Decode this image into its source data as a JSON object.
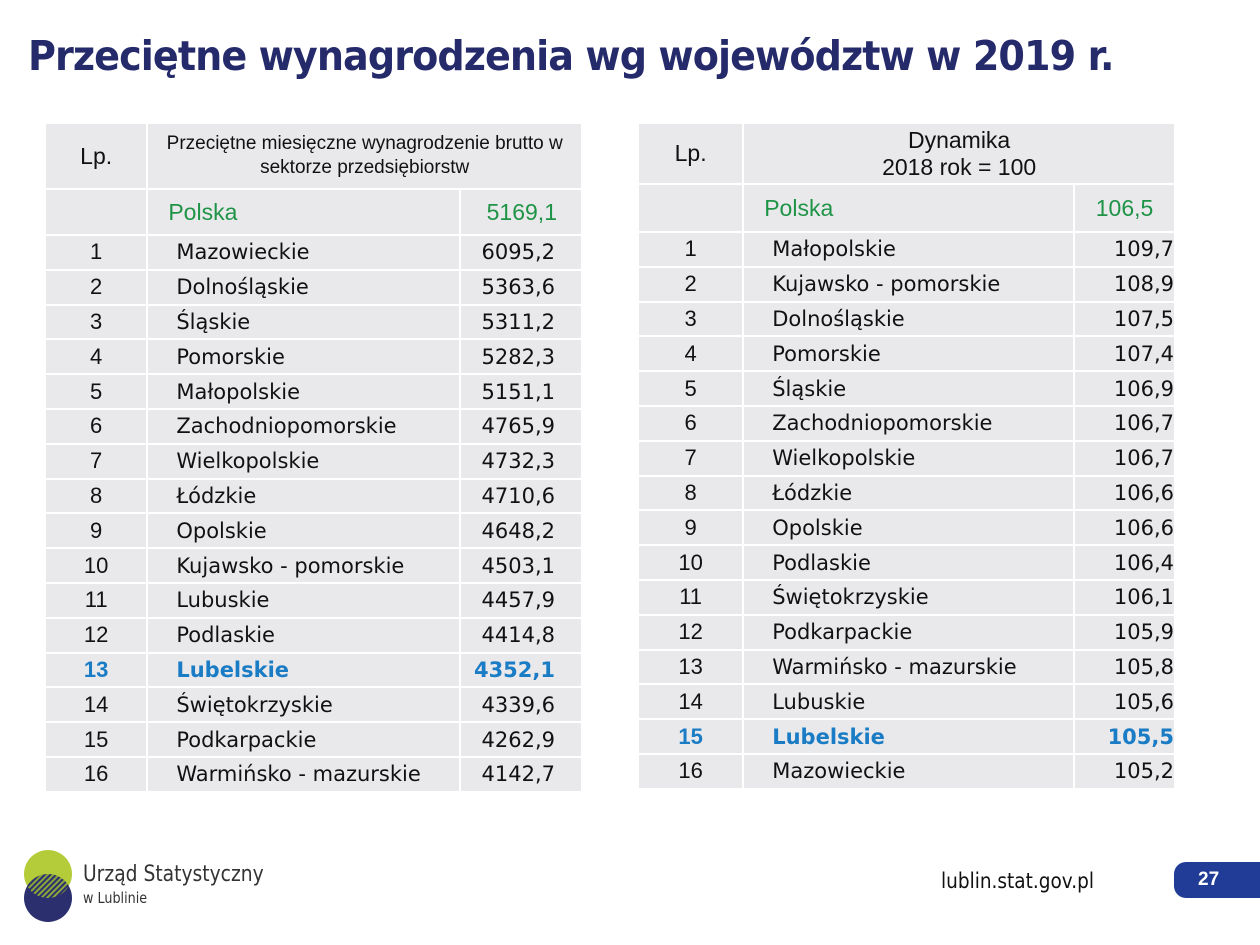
{
  "title": "Przeciętne wynagrodzenia wg województw w 2019 r.",
  "left_table": {
    "lp_header": "Lp.",
    "header": "Przeciętne miesięczne wynagrodzenie brutto w sektorze przedsiębiorstw",
    "total_label": "Polska",
    "total_value": "5169,1",
    "highlight_index": 12,
    "rows": [
      [
        "1",
        "Mazowieckie",
        "6095,2"
      ],
      [
        "2",
        "Dolnośląskie",
        "5363,6"
      ],
      [
        "3",
        "Śląskie",
        "5311,2"
      ],
      [
        "4",
        "Pomorskie",
        "5282,3"
      ],
      [
        "5",
        "Małopolskie",
        "5151,1"
      ],
      [
        "6",
        "Zachodniopomorskie",
        "4765,9"
      ],
      [
        "7",
        "Wielkopolskie",
        "4732,3"
      ],
      [
        "8",
        "Łódzkie",
        "4710,6"
      ],
      [
        "9",
        "Opolskie",
        "4648,2"
      ],
      [
        "10",
        "Kujawsko - pomorskie",
        "4503,1"
      ],
      [
        "11",
        "Lubuskie",
        "4457,9"
      ],
      [
        "12",
        "Podlaskie",
        "4414,8"
      ],
      [
        "13",
        "Lubelskie",
        "4352,1"
      ],
      [
        "14",
        "Świętokrzyskie",
        "4339,6"
      ],
      [
        "15",
        "Podkarpackie",
        "4262,9"
      ],
      [
        "16",
        "Warmińsko - mazurskie",
        "4142,7"
      ]
    ]
  },
  "right_table": {
    "lp_header": "Lp.",
    "header_line1": "Dynamika",
    "header_line2": "2018 rok = 100",
    "total_label": "Polska",
    "total_value": "106,5",
    "highlight_index": 14,
    "rows": [
      [
        "1",
        "Małopolskie",
        "109,7"
      ],
      [
        "2",
        "Kujawsko - pomorskie",
        "108,9"
      ],
      [
        "3",
        "Dolnośląskie",
        "107,5"
      ],
      [
        "4",
        "Pomorskie",
        "107,4"
      ],
      [
        "5",
        "Śląskie",
        "106,9"
      ],
      [
        "6",
        "Zachodniopomorskie",
        "106,7"
      ],
      [
        "7",
        "Wielkopolskie",
        "106,7"
      ],
      [
        "8",
        "Łódzkie",
        "106,6"
      ],
      [
        "9",
        "Opolskie",
        "106,6"
      ],
      [
        "10",
        "Podlaskie",
        "106,4"
      ],
      [
        "11",
        "Świętokrzyskie",
        "106,1"
      ],
      [
        "12",
        "Podkarpackie",
        "105,9"
      ],
      [
        "13",
        "Warmińsko - mazurskie",
        "105,8"
      ],
      [
        "14",
        "Lubuskie",
        "105,6"
      ],
      [
        "15",
        "Lubelskie",
        "105,5"
      ],
      [
        "16",
        "Mazowieckie",
        "105,2"
      ]
    ]
  },
  "footer": {
    "logo_line1": "Urząd Statystyczny",
    "logo_line2": "w Lublinie",
    "url": "lublin.stat.gov.pl",
    "page_number": "27"
  },
  "colors": {
    "title": "#252a6b",
    "highlight": "#1a7cc4",
    "total": "#1f9447",
    "page_badge": "#203c96"
  }
}
